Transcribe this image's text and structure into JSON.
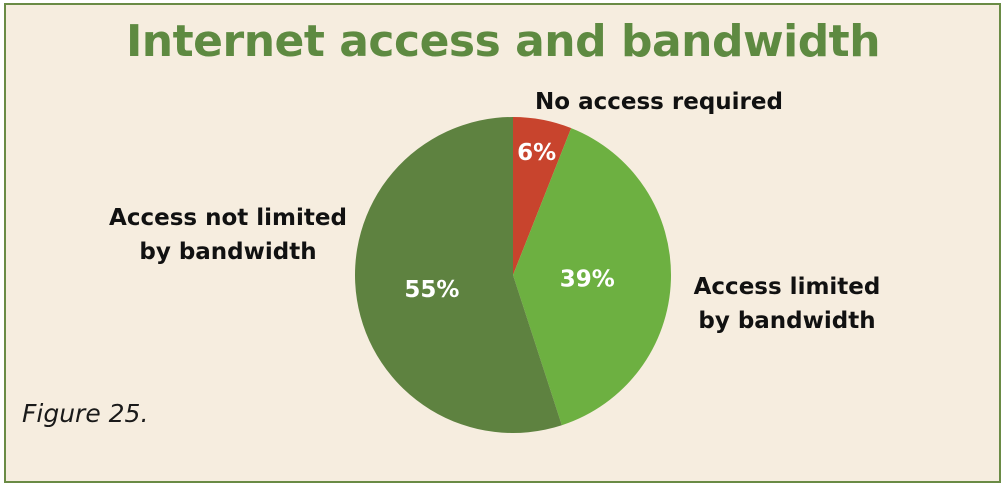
{
  "chart_data": {
    "type": "pie",
    "title": "Internet access and bandwidth",
    "slices": [
      {
        "label": "No access required",
        "value": 6,
        "value_label": "6%",
        "color": "#c8442d"
      },
      {
        "label": "Access limited by bandwidth",
        "value": 39,
        "value_label": "39%",
        "color": "#6db041"
      },
      {
        "label": "Access not limited by bandwidth",
        "value": 55,
        "value_label": "55%",
        "color": "#5e8240"
      }
    ],
    "start_angle": "12 o'clock",
    "direction": "clockwise"
  },
  "caption": "Figure 25.",
  "colors": {
    "background": "#f6eddf",
    "border": "#6a8b45",
    "title": "#5e8a41",
    "label_text": "#111111",
    "value_text": "#ffffff"
  }
}
